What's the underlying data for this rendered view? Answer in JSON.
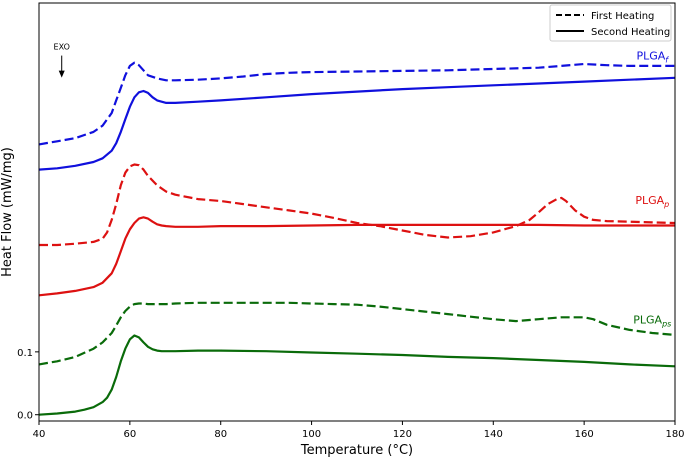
{
  "chart_data": {
    "type": "line",
    "xlabel": "Temperature (°C)",
    "ylabel": "Heat Flow (mW/mg)",
    "xlim": [
      40,
      180
    ],
    "ylim": [
      -0.01,
      0.655
    ],
    "x_ticks": [
      40,
      60,
      80,
      100,
      120,
      140,
      160,
      180
    ],
    "y_ticks": [
      0.0,
      0.1
    ],
    "y_tick_labels": [
      "0.0",
      "0.1"
    ],
    "grid": false,
    "legend": {
      "placement": "top-right",
      "entries": [
        {
          "label": "First Heating",
          "style": "dashed"
        },
        {
          "label": "Second Heating",
          "style": "solid"
        }
      ]
    },
    "annotation": {
      "text": "EXO",
      "x": 45,
      "y": 0.565,
      "arrow": "down"
    },
    "series_labels": [
      {
        "base": "PLGA",
        "sub": "f",
        "color": "#1010dd",
        "x": 175,
        "y": 0.565
      },
      {
        "base": "PLGA",
        "sub": "p",
        "color": "#dd1111",
        "x": 175,
        "y": 0.335
      },
      {
        "base": "PLGA",
        "sub": "ps",
        "color": "#0a6b0a",
        "x": 175,
        "y": 0.145
      }
    ],
    "series": [
      {
        "group": "PLGAf",
        "heating": "First Heating",
        "color": "#1010dd",
        "dash": true,
        "x": [
          40,
          44,
          48,
          52,
          54,
          56,
          57,
          58,
          59,
          60,
          61,
          62,
          63,
          64,
          66,
          68,
          70,
          75,
          80,
          85,
          90,
          95,
          100,
          110,
          120,
          130,
          140,
          150,
          155,
          160,
          165,
          170,
          175,
          180
        ],
        "y": [
          0.43,
          0.435,
          0.44,
          0.45,
          0.46,
          0.48,
          0.5,
          0.52,
          0.54,
          0.555,
          0.56,
          0.556,
          0.548,
          0.54,
          0.535,
          0.532,
          0.532,
          0.533,
          0.535,
          0.538,
          0.542,
          0.544,
          0.545,
          0.546,
          0.547,
          0.548,
          0.55,
          0.552,
          0.555,
          0.558,
          0.556,
          0.555,
          0.555,
          0.555
        ]
      },
      {
        "group": "PLGAf",
        "heating": "Second Heating",
        "color": "#1010dd",
        "dash": false,
        "x": [
          40,
          44,
          48,
          52,
          54,
          56,
          57,
          58,
          59,
          60,
          61,
          62,
          63,
          64,
          65,
          66,
          68,
          70,
          75,
          80,
          90,
          100,
          110,
          120,
          130,
          140,
          150,
          160,
          170,
          180
        ],
        "y": [
          0.39,
          0.392,
          0.396,
          0.402,
          0.408,
          0.42,
          0.432,
          0.45,
          0.47,
          0.49,
          0.505,
          0.513,
          0.515,
          0.512,
          0.505,
          0.5,
          0.496,
          0.496,
          0.498,
          0.5,
          0.505,
          0.51,
          0.514,
          0.518,
          0.521,
          0.524,
          0.527,
          0.53,
          0.533,
          0.536
        ]
      },
      {
        "group": "PLGAp",
        "heating": "First Heating",
        "color": "#dd1111",
        "dash": true,
        "x": [
          40,
          44,
          48,
          52,
          54,
          55,
          56,
          57,
          58,
          59,
          60,
          61,
          62,
          63,
          64,
          66,
          68,
          70,
          75,
          80,
          85,
          90,
          95,
          100,
          105,
          110,
          115,
          120,
          125,
          130,
          135,
          140,
          145,
          148,
          150,
          152,
          154,
          155,
          156,
          158,
          160,
          162,
          165,
          170,
          175,
          180
        ],
        "y": [
          0.27,
          0.27,
          0.272,
          0.275,
          0.28,
          0.29,
          0.31,
          0.335,
          0.365,
          0.385,
          0.395,
          0.398,
          0.397,
          0.39,
          0.38,
          0.365,
          0.355,
          0.35,
          0.343,
          0.34,
          0.335,
          0.33,
          0.325,
          0.32,
          0.313,
          0.305,
          0.3,
          0.293,
          0.286,
          0.282,
          0.284,
          0.29,
          0.3,
          0.31,
          0.322,
          0.335,
          0.343,
          0.345,
          0.34,
          0.325,
          0.315,
          0.31,
          0.308,
          0.307,
          0.306,
          0.305
        ]
      },
      {
        "group": "PLGAp",
        "heating": "Second Heating",
        "color": "#dd1111",
        "dash": false,
        "x": [
          40,
          44,
          48,
          52,
          54,
          56,
          57,
          58,
          59,
          60,
          61,
          62,
          63,
          64,
          65,
          66,
          67,
          68,
          70,
          75,
          80,
          90,
          100,
          110,
          120,
          130,
          140,
          150,
          160,
          170,
          180
        ],
        "y": [
          0.19,
          0.193,
          0.197,
          0.203,
          0.21,
          0.225,
          0.24,
          0.26,
          0.28,
          0.295,
          0.305,
          0.312,
          0.314,
          0.312,
          0.307,
          0.303,
          0.301,
          0.3,
          0.299,
          0.299,
          0.3,
          0.3,
          0.301,
          0.302,
          0.302,
          0.302,
          0.302,
          0.302,
          0.301,
          0.301,
          0.301
        ]
      },
      {
        "group": "PLGAps",
        "heating": "First Heating",
        "color": "#0a6b0a",
        "dash": true,
        "x": [
          40,
          44,
          48,
          52,
          54,
          56,
          57,
          58,
          59,
          60,
          61,
          62,
          63,
          64,
          66,
          68,
          70,
          75,
          80,
          85,
          90,
          95,
          100,
          105,
          110,
          115,
          120,
          125,
          130,
          135,
          140,
          145,
          150,
          155,
          160,
          162,
          165,
          170,
          175,
          180
        ],
        "y": [
          0.08,
          0.085,
          0.092,
          0.105,
          0.115,
          0.13,
          0.142,
          0.155,
          0.165,
          0.172,
          0.176,
          0.177,
          0.177,
          0.176,
          0.176,
          0.176,
          0.177,
          0.178,
          0.178,
          0.178,
          0.178,
          0.178,
          0.177,
          0.176,
          0.175,
          0.172,
          0.168,
          0.164,
          0.16,
          0.156,
          0.152,
          0.149,
          0.152,
          0.155,
          0.155,
          0.152,
          0.143,
          0.135,
          0.13,
          0.127
        ]
      },
      {
        "group": "PLGAps",
        "heating": "Second Heating",
        "color": "#0a6b0a",
        "dash": false,
        "x": [
          40,
          44,
          48,
          50,
          52,
          54,
          55,
          56,
          57,
          58,
          59,
          60,
          61,
          62,
          63,
          64,
          65,
          66,
          67,
          68,
          70,
          75,
          80,
          90,
          100,
          110,
          120,
          130,
          140,
          150,
          160,
          170,
          180
        ],
        "y": [
          0.0,
          0.002,
          0.005,
          0.008,
          0.012,
          0.02,
          0.027,
          0.04,
          0.06,
          0.085,
          0.105,
          0.12,
          0.126,
          0.123,
          0.115,
          0.108,
          0.104,
          0.102,
          0.101,
          0.101,
          0.101,
          0.102,
          0.102,
          0.101,
          0.099,
          0.097,
          0.095,
          0.092,
          0.09,
          0.087,
          0.084,
          0.08,
          0.077
        ]
      }
    ]
  }
}
